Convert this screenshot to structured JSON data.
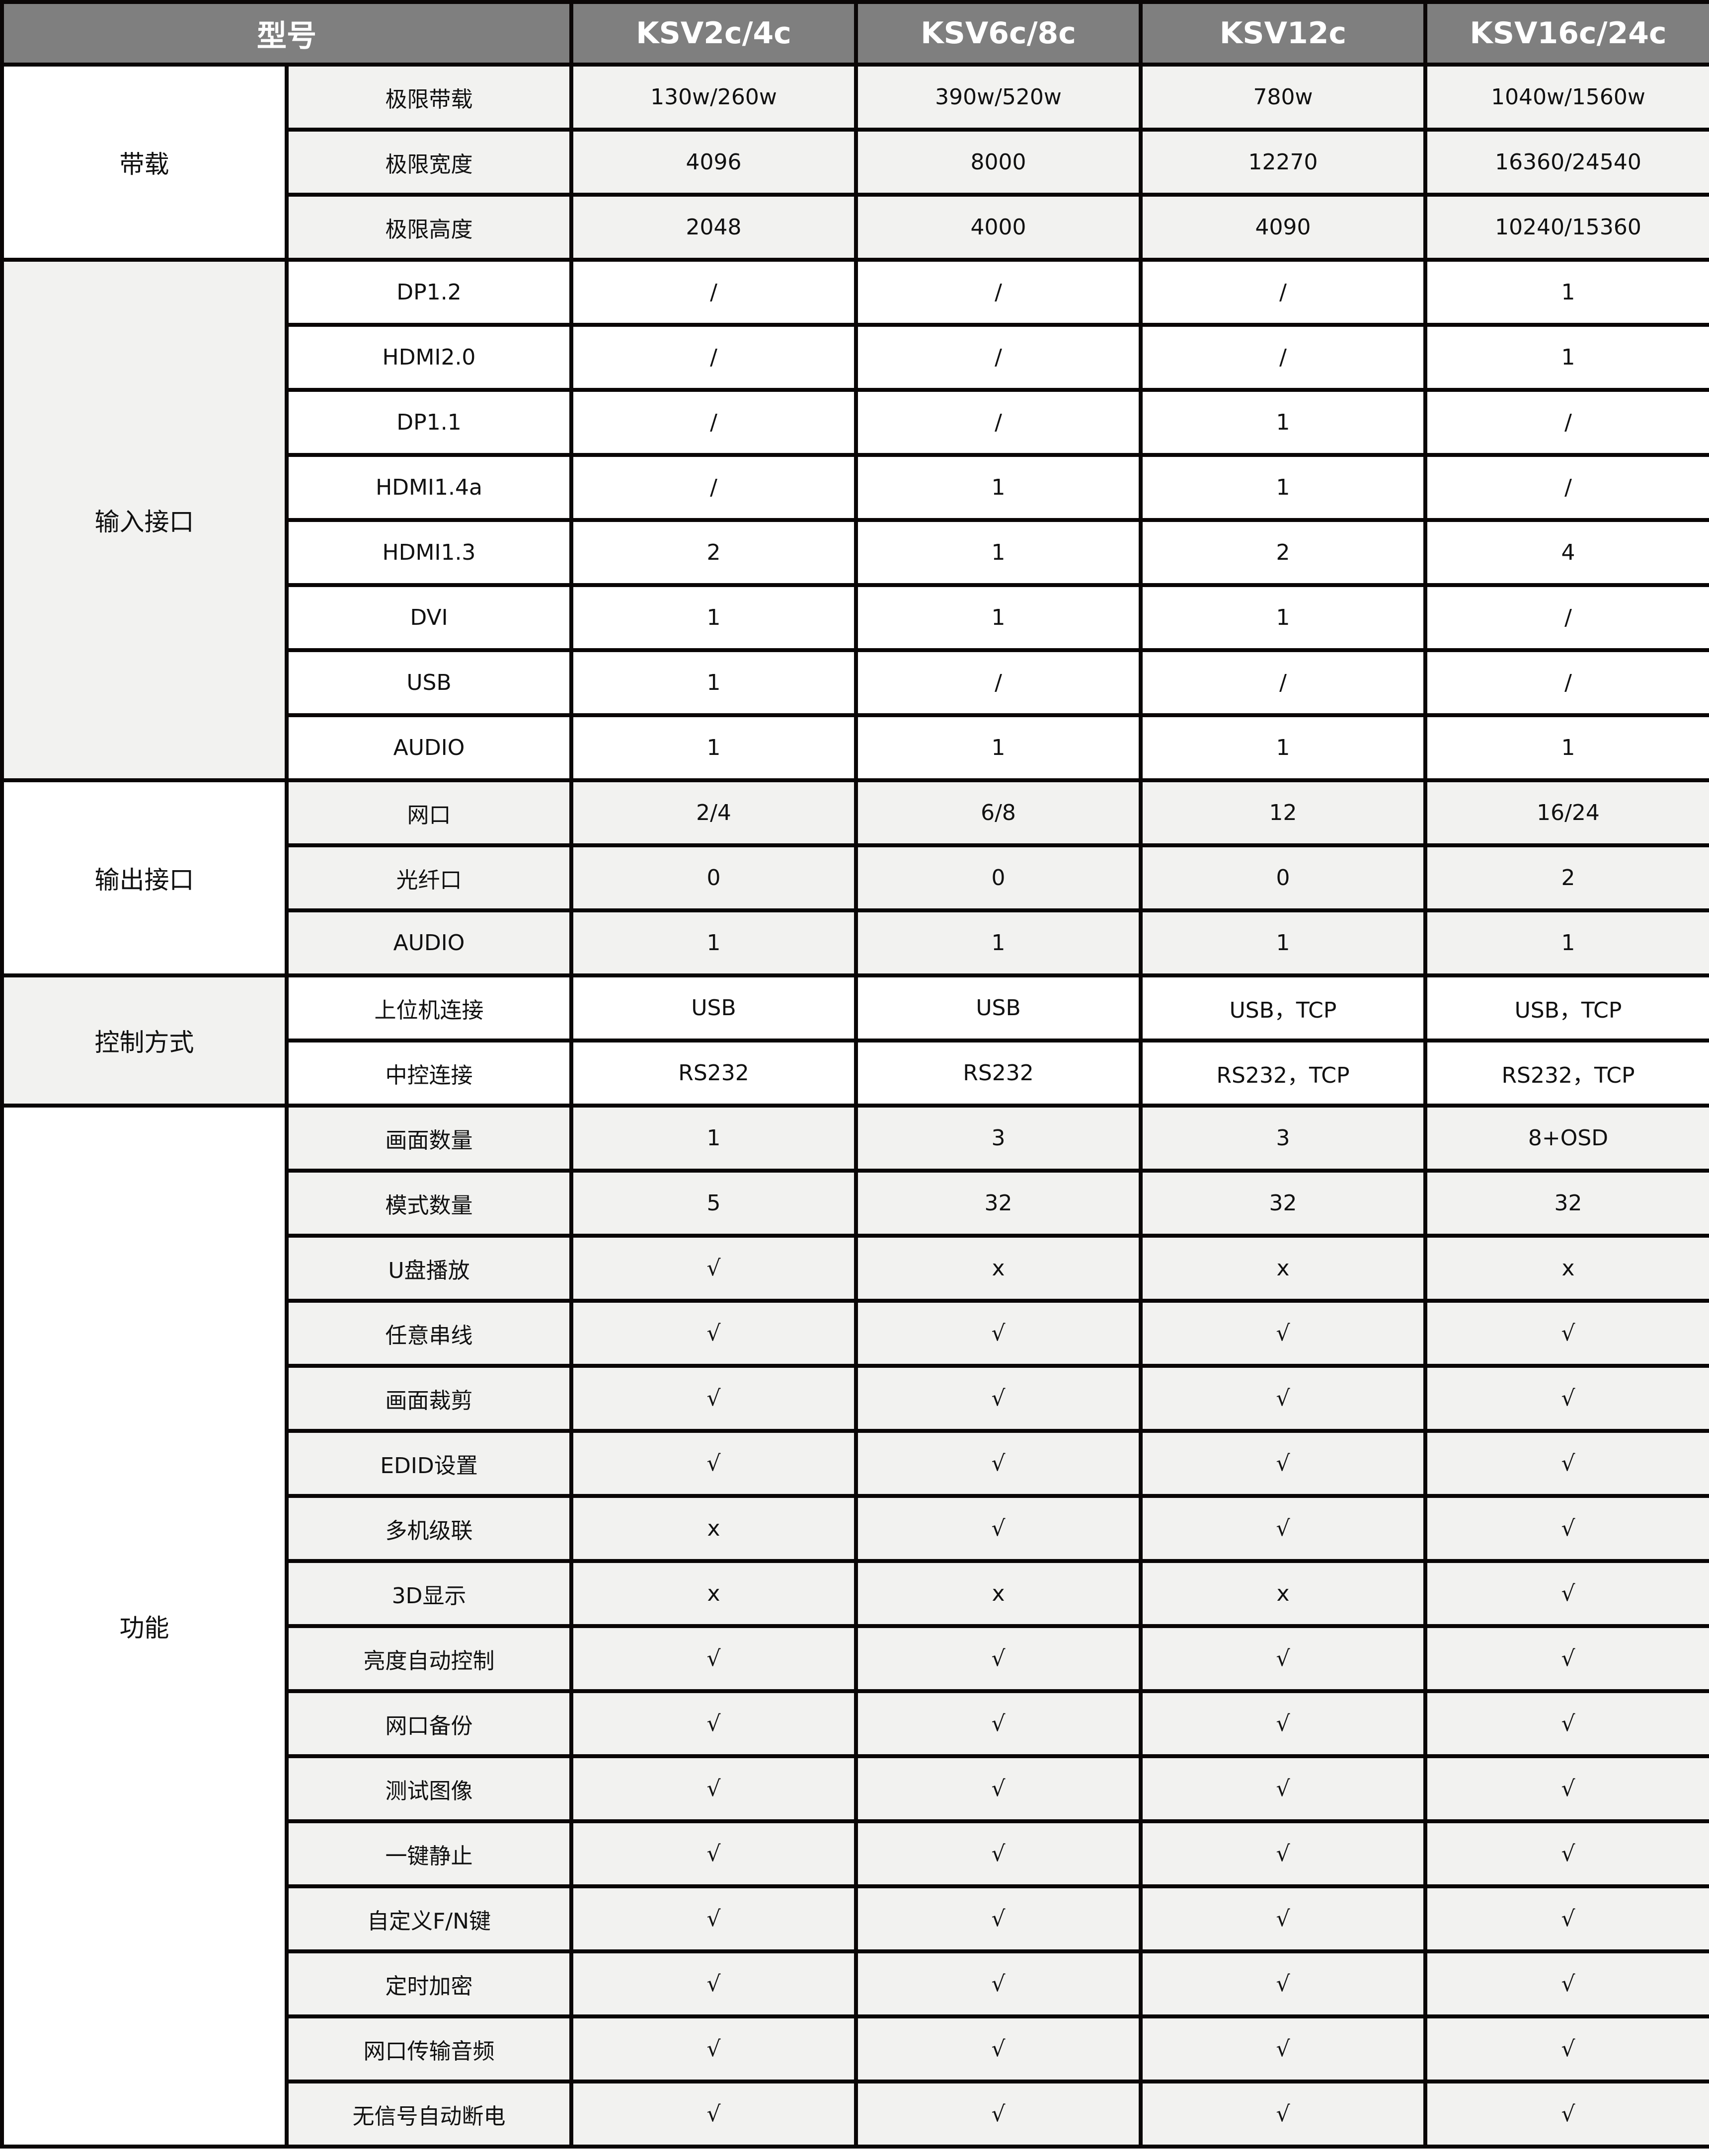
{
  "header": {
    "model_label": "型号",
    "models": [
      "KSV2c/4c",
      "KSV6c/8c",
      "KSV12c",
      "KSV16c/24c"
    ]
  },
  "groups": [
    {
      "label": "带载",
      "label_bg": "white",
      "rows_bg": "gray",
      "rows": [
        {
          "name": "极限带载",
          "values": [
            "130w/260w",
            "390w/520w",
            "780w",
            "1040w/1560w"
          ]
        },
        {
          "name": "极限宽度",
          "values": [
            "4096",
            "8000",
            "12270",
            "16360/24540"
          ]
        },
        {
          "name": "极限高度",
          "values": [
            "2048",
            "4000",
            "4090",
            "10240/15360"
          ]
        }
      ]
    },
    {
      "label": "输入接口",
      "label_bg": "gray",
      "rows_bg": "white",
      "rows": [
        {
          "name": "DP1.2",
          "values": [
            "/",
            "/",
            "/",
            "1"
          ]
        },
        {
          "name": "HDMI2.0",
          "values": [
            "/",
            "/",
            "/",
            "1"
          ]
        },
        {
          "name": "DP1.1",
          "values": [
            "/",
            "/",
            "1",
            "/"
          ]
        },
        {
          "name": "HDMI1.4a",
          "values": [
            "/",
            "1",
            "1",
            "/"
          ]
        },
        {
          "name": "HDMI1.3",
          "values": [
            "2",
            "1",
            "2",
            "4"
          ]
        },
        {
          "name": "DVI",
          "values": [
            "1",
            "1",
            "1",
            "/"
          ]
        },
        {
          "name": "USB",
          "values": [
            "1",
            "/",
            "/",
            "/"
          ]
        },
        {
          "name": "AUDIO",
          "values": [
            "1",
            "1",
            "1",
            "1"
          ]
        }
      ]
    },
    {
      "label": "输出接口",
      "label_bg": "white",
      "rows_bg": "gray",
      "rows": [
        {
          "name": "网口",
          "values": [
            "2/4",
            "6/8",
            "12",
            "16/24"
          ]
        },
        {
          "name": "光纤口",
          "values": [
            "0",
            "0",
            "0",
            "2"
          ]
        },
        {
          "name": "AUDIO",
          "values": [
            "1",
            "1",
            "1",
            "1"
          ]
        }
      ]
    },
    {
      "label": "控制方式",
      "label_bg": "gray",
      "rows_bg": "white",
      "rows": [
        {
          "name": "上位机连接",
          "values": [
            "USB",
            "USB",
            "USB，TCP",
            "USB，TCP"
          ]
        },
        {
          "name": "中控连接",
          "values": [
            "RS232",
            "RS232",
            "RS232，TCP",
            "RS232，TCP"
          ]
        }
      ]
    },
    {
      "label": "功能",
      "label_bg": "white",
      "rows_bg": "gray",
      "rows": [
        {
          "name": "画面数量",
          "values": [
            "1",
            "3",
            "3",
            "8+OSD"
          ]
        },
        {
          "name": "模式数量",
          "values": [
            "5",
            "32",
            "32",
            "32"
          ]
        },
        {
          "name": "U盘播放",
          "values": [
            "√",
            "x",
            "x",
            "x"
          ]
        },
        {
          "name": "任意串线",
          "values": [
            "√",
            "√",
            "√",
            "√"
          ]
        },
        {
          "name": "画面裁剪",
          "values": [
            "√",
            "√",
            "√",
            "√"
          ]
        },
        {
          "name": "EDID设置",
          "values": [
            "√",
            "√",
            "√",
            "√"
          ]
        },
        {
          "name": "多机级联",
          "values": [
            "x",
            "√",
            "√",
            "√"
          ]
        },
        {
          "name": "3D显示",
          "values": [
            "x",
            "x",
            "x",
            "√"
          ]
        },
        {
          "name": "亮度自动控制",
          "values": [
            "√",
            "√",
            "√",
            "√"
          ]
        },
        {
          "name": "网口备份",
          "values": [
            "√",
            "√",
            "√",
            "√"
          ]
        },
        {
          "name": "测试图像",
          "values": [
            "√",
            "√",
            "√",
            "√"
          ]
        },
        {
          "name": "一键静止",
          "values": [
            "√",
            "√",
            "√",
            "√"
          ]
        },
        {
          "name": "自定义F/N键",
          "values": [
            "√",
            "√",
            "√",
            "√"
          ]
        },
        {
          "name": "定时加密",
          "values": [
            "√",
            "√",
            "√",
            "√"
          ]
        },
        {
          "name": "网口传输音频",
          "values": [
            "√",
            "√",
            "√",
            "√"
          ]
        },
        {
          "name": "无信号自动断电",
          "values": [
            "√",
            "√",
            "√",
            "√"
          ]
        }
      ]
    }
  ],
  "colors": {
    "header_bg": "#7f7f7f",
    "gray_cell": "#f2f2f0",
    "border": "#0a0606"
  }
}
